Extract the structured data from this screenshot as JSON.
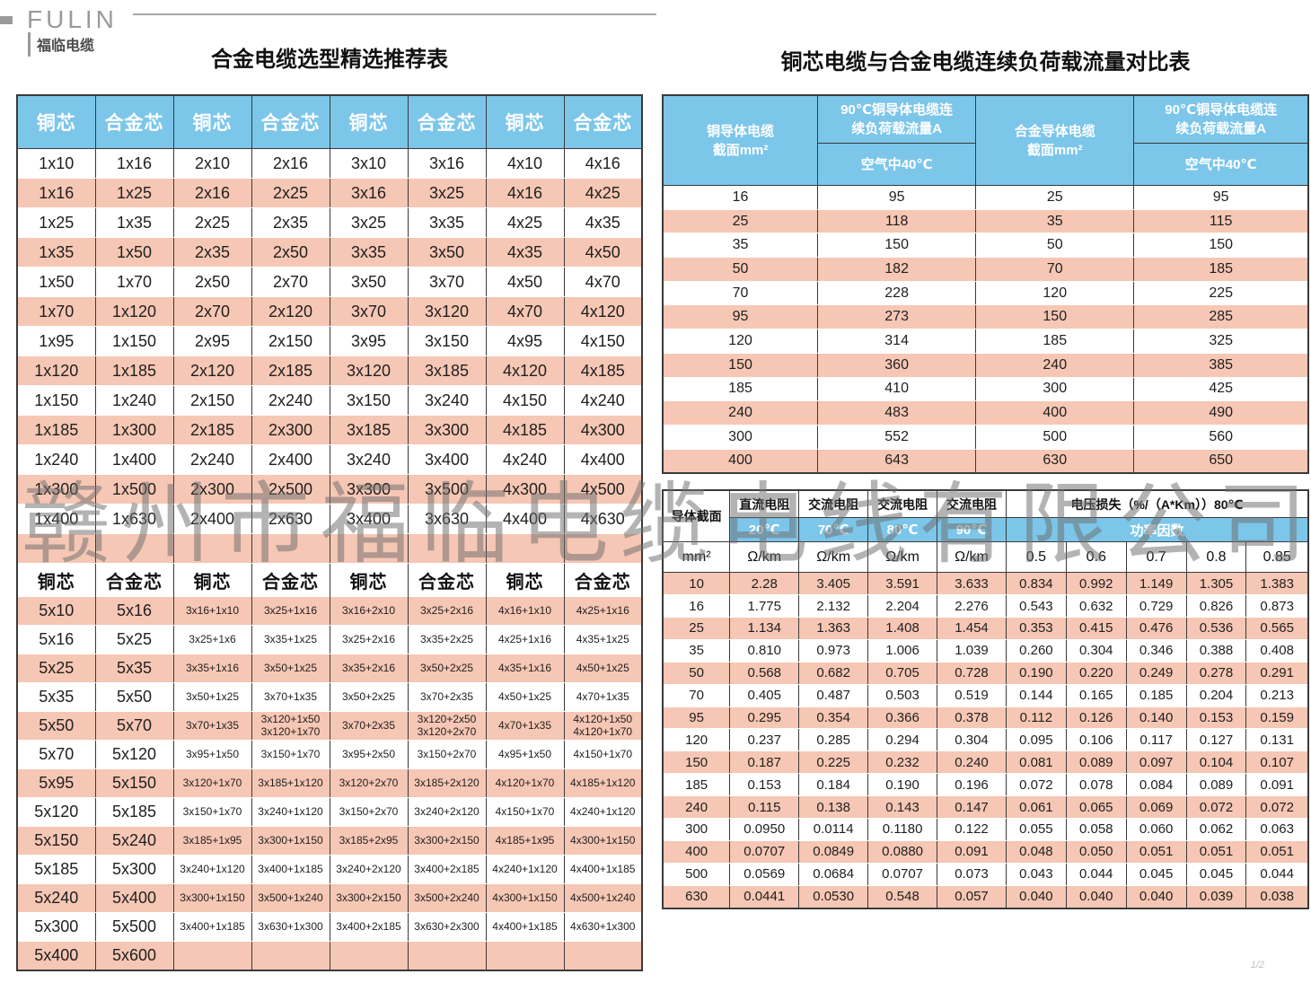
{
  "brand": {
    "logo_en": "FULIN",
    "logo_cn": "福临电缆"
  },
  "watermark": "赣州市福临电缆电线有限公司",
  "page_indicator": "1/2",
  "colors": {
    "header_blue": "#7cc6ea",
    "row_pink": "#f6c7b4",
    "border": "#3a3a3a"
  },
  "left_table": {
    "title": "合金电缆选型精选推荐表",
    "header": [
      "铜芯",
      "合金芯",
      "铜芯",
      "合金芯",
      "铜芯",
      "合金芯",
      "铜芯",
      "合金芯"
    ],
    "upper_rows": [
      [
        "1x10",
        "1x16",
        "2x10",
        "2x16",
        "3x10",
        "3x16",
        "4x10",
        "4x16"
      ],
      [
        "1x16",
        "1x25",
        "2x16",
        "2x25",
        "3x16",
        "3x25",
        "4x16",
        "4x25"
      ],
      [
        "1x25",
        "1x35",
        "2x25",
        "2x35",
        "3x25",
        "3x35",
        "4x25",
        "4x35"
      ],
      [
        "1x35",
        "1x50",
        "2x35",
        "2x50",
        "3x35",
        "3x50",
        "4x35",
        "4x50"
      ],
      [
        "1x50",
        "1x70",
        "2x50",
        "2x70",
        "3x50",
        "3x70",
        "4x50",
        "4x70"
      ],
      [
        "1x70",
        "1x120",
        "2x70",
        "2x120",
        "3x70",
        "3x120",
        "4x70",
        "4x120"
      ],
      [
        "1x95",
        "1x150",
        "2x95",
        "2x150",
        "3x95",
        "3x150",
        "4x95",
        "4x150"
      ],
      [
        "1x120",
        "1x185",
        "2x120",
        "2x185",
        "3x120",
        "3x185",
        "4x120",
        "4x185"
      ],
      [
        "1x150",
        "1x240",
        "2x150",
        "2x240",
        "3x150",
        "3x240",
        "4x150",
        "4x240"
      ],
      [
        "1x185",
        "1x300",
        "2x185",
        "2x300",
        "3x185",
        "3x300",
        "4x185",
        "4x300"
      ],
      [
        "1x240",
        "1x400",
        "2x240",
        "2x400",
        "3x240",
        "3x400",
        "4x240",
        "4x400"
      ],
      [
        "1x300",
        "1x500",
        "2x300",
        "2x500",
        "3x300",
        "3x500",
        "4x300",
        "4x500"
      ],
      [
        "1x400",
        "1x630",
        "2x400",
        "2x630",
        "3x400",
        "3x630",
        "4x400",
        "4x630"
      ],
      [
        "",
        "",
        "",
        "",
        "",
        "",
        "",
        ""
      ]
    ],
    "mid_header": [
      "铜芯",
      "合金芯",
      "铜芯",
      "合金芯",
      "铜芯",
      "合金芯",
      "铜芯",
      "合金芯"
    ],
    "lower_rows": [
      [
        "5x10",
        "5x16",
        "3x16+1x10",
        "3x25+1x16",
        "3x16+2x10",
        "3x25+2x16",
        "4x16+1x10",
        "4x25+1x16"
      ],
      [
        "5x16",
        "5x25",
        "3x25+1x6",
        "3x35+1x25",
        "3x25+2x16",
        "3x35+2x25",
        "4x25+1x16",
        "4x35+1x25"
      ],
      [
        "5x25",
        "5x35",
        "3x35+1x16",
        "3x50+1x25",
        "3x35+2x16",
        "3x50+2x25",
        "4x35+1x16",
        "4x50+1x25"
      ],
      [
        "5x35",
        "5x50",
        "3x50+1x25",
        "3x70+1x35",
        "3x50+2x25",
        "3x70+2x35",
        "4x50+1x25",
        "4x70+1x35"
      ],
      [
        "5x50",
        "5x70",
        "3x70+1x35",
        "3x120+1x50\n3x120+1x70",
        "3x70+2x35",
        "3x120+2x50\n3x120+2x70",
        "4x70+1x35",
        "4x120+1x50\n4x120+1x70"
      ],
      [
        "5x70",
        "5x120",
        "3x95+1x50",
        "3x150+1x70",
        "3x95+2x50",
        "3x150+2x70",
        "4x95+1x50",
        "4x150+1x70"
      ],
      [
        "5x95",
        "5x150",
        "3x120+1x70",
        "3x185+1x120",
        "3x120+2x70",
        "3x185+2x120",
        "4x120+1x70",
        "4x185+1x120"
      ],
      [
        "5x120",
        "5x185",
        "3x150+1x70",
        "3x240+1x120",
        "3x150+2x70",
        "3x240+2x120",
        "4x150+1x70",
        "4x240+1x120"
      ],
      [
        "5x150",
        "5x240",
        "3x185+1x95",
        "3x300+1x150",
        "3x185+2x95",
        "3x300+2x150",
        "4x185+1x95",
        "4x300+1x150"
      ],
      [
        "5x185",
        "5x300",
        "3x240+1x120",
        "3x400+1x185",
        "3x240+2x120",
        "3x400+2x185",
        "4x240+1x120",
        "4x400+1x185"
      ],
      [
        "5x240",
        "5x400",
        "3x300+1x150",
        "3x500+1x240",
        "3x300+2x150",
        "3x500+2x240",
        "4x300+1x150",
        "4x500+1x240"
      ],
      [
        "5x300",
        "5x500",
        "3x400+1x185",
        "3x630+1x300",
        "3x400+2x185",
        "3x630+2x300",
        "4x400+1x185",
        "4x630+1x300"
      ],
      [
        "5x400",
        "5x600",
        "",
        "",
        "",
        "",
        "",
        ""
      ]
    ]
  },
  "right_top_table": {
    "title": "铜芯电缆与合金电缆连续负荷载流量对比表",
    "headers": {
      "copper_section": "铜导体电缆\n截面mm²",
      "copper_ampacity": "90℃铜导体电缆连\n续负荷载流量A",
      "alloy_section": "合金导体电缆\n截面mm²",
      "alloy_ampacity": "90℃铜导体电缆连\n续负荷载流量A",
      "air40_copper": "空气中40℃",
      "air40_alloy": "空气中40℃"
    },
    "rows": [
      [
        "16",
        "95",
        "25",
        "95"
      ],
      [
        "25",
        "118",
        "35",
        "115"
      ],
      [
        "35",
        "150",
        "50",
        "150"
      ],
      [
        "50",
        "182",
        "70",
        "185"
      ],
      [
        "70",
        "228",
        "120",
        "225"
      ],
      [
        "95",
        "273",
        "150",
        "285"
      ],
      [
        "120",
        "314",
        "185",
        "325"
      ],
      [
        "150",
        "360",
        "240",
        "385"
      ],
      [
        "185",
        "410",
        "300",
        "425"
      ],
      [
        "240",
        "483",
        "400",
        "490"
      ],
      [
        "300",
        "552",
        "500",
        "560"
      ],
      [
        "400",
        "643",
        "630",
        "650"
      ]
    ]
  },
  "right_bottom_table": {
    "headers": {
      "conductor_section": "导体截面",
      "dc_resistance": "直流电阻",
      "ac_resistance": "交流电阻",
      "voltage_loss": "电压损失（%/（A*Km））80℃",
      "t20": "20℃",
      "t70": "70℃",
      "t80": "80℃",
      "t90": "90℃",
      "power_factor": "功率因数",
      "unit_mm2": "mm²",
      "unit_ohm": "Ω/km",
      "pf_05": "0.5",
      "pf_06": "0.6",
      "pf_07": "0.7",
      "pf_08": "0.8",
      "pf_085": "0.85"
    },
    "rows": [
      [
        "10",
        "2.28",
        "3.405",
        "3.591",
        "3.633",
        "0.834",
        "0.992",
        "1.149",
        "1.305",
        "1.383"
      ],
      [
        "16",
        "1.775",
        "2.132",
        "2.204",
        "2.276",
        "0.543",
        "0.632",
        "0.729",
        "0.826",
        "0.873"
      ],
      [
        "25",
        "1.134",
        "1.363",
        "1.408",
        "1.454",
        "0.353",
        "0.415",
        "0.476",
        "0.536",
        "0.565"
      ],
      [
        "35",
        "0.810",
        "0.973",
        "1.006",
        "1.039",
        "0.260",
        "0.304",
        "0.346",
        "0.388",
        "0.408"
      ],
      [
        "50",
        "0.568",
        "0.682",
        "0.705",
        "0.728",
        "0.190",
        "0.220",
        "0.249",
        "0.278",
        "0.291"
      ],
      [
        "70",
        "0.405",
        "0.487",
        "0.503",
        "0.519",
        "0.144",
        "0.165",
        "0.185",
        "0.204",
        "0.213"
      ],
      [
        "95",
        "0.295",
        "0.354",
        "0.366",
        "0.378",
        "0.112",
        "0.126",
        "0.140",
        "0.153",
        "0.159"
      ],
      [
        "120",
        "0.237",
        "0.285",
        "0.294",
        "0.304",
        "0.095",
        "0.106",
        "0.117",
        "0.127",
        "0.131"
      ],
      [
        "150",
        "0.187",
        "0.225",
        "0.232",
        "0.240",
        "0.081",
        "0.089",
        "0.097",
        "0.104",
        "0.107"
      ],
      [
        "185",
        "0.153",
        "0.184",
        "0.190",
        "0.196",
        "0.072",
        "0.078",
        "0.084",
        "0.089",
        "0.091"
      ],
      [
        "240",
        "0.115",
        "0.138",
        "0.143",
        "0.147",
        "0.061",
        "0.065",
        "0.069",
        "0.072",
        "0.072"
      ],
      [
        "300",
        "0.0950",
        "0.0114",
        "0.1180",
        "0.122",
        "0.055",
        "0.058",
        "0.060",
        "0.062",
        "0.063"
      ],
      [
        "400",
        "0.0707",
        "0.0849",
        "0.0880",
        "0.091",
        "0.048",
        "0.050",
        "0.051",
        "0.051",
        "0.051"
      ],
      [
        "500",
        "0.0569",
        "0.0684",
        "0.0707",
        "0.073",
        "0.043",
        "0.044",
        "0.045",
        "0.045",
        "0.044"
      ],
      [
        "630",
        "0.0441",
        "0.0530",
        "0.548",
        "0.057",
        "0.040",
        "0.040",
        "0.040",
        "0.039",
        "0.038"
      ]
    ]
  }
}
